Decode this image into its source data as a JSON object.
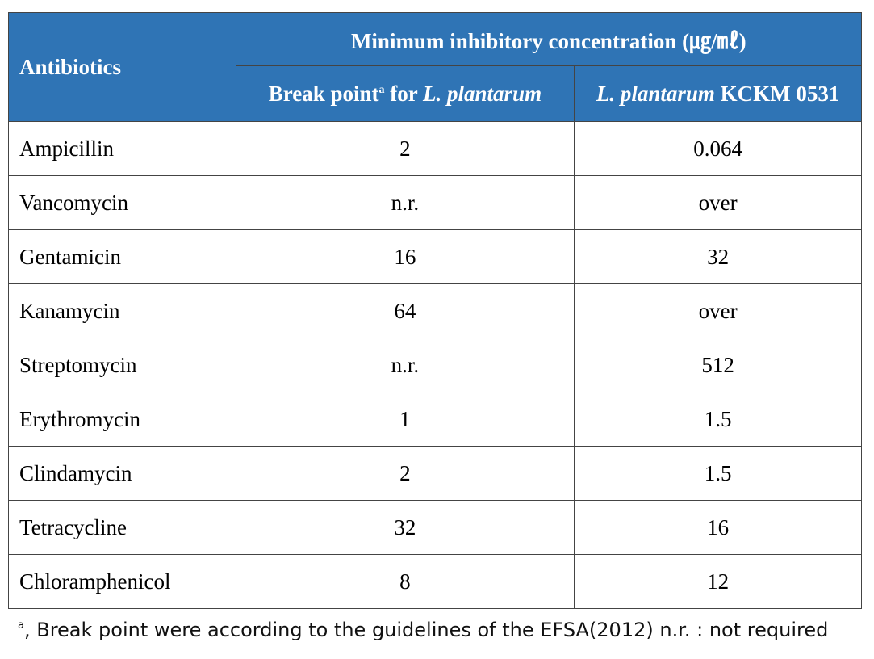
{
  "header": {
    "antibiotics": "Antibiotics",
    "mic": "Minimum inhibitory concentration (㎍/㎖)",
    "col1": {
      "text": "Break point",
      "sup": "a",
      "mid": " for ",
      "italic": "L. plantarum"
    },
    "col2": {
      "italic": "L. plantarum",
      "rest": " KCKM 0531"
    }
  },
  "table": {
    "rows": [
      [
        "Ampicillin",
        "2",
        "0.064"
      ],
      [
        "Vancomycin",
        "n.r.",
        "over"
      ],
      [
        "Gentamicin",
        "16",
        "32"
      ],
      [
        "Kanamycin",
        "64",
        "over"
      ],
      [
        "Streptomycin",
        "n.r.",
        "512"
      ],
      [
        "Erythromycin",
        "1",
        "1.5"
      ],
      [
        "Clindamycin",
        "2",
        "1.5"
      ],
      [
        "Tetracycline",
        "32",
        "16"
      ],
      [
        "Chloramphenicol",
        "8",
        "12"
      ]
    ]
  },
  "footnote": {
    "sup": "a",
    "text": ", Break point were according to the guidelines of the EFSA(2012) n.r. : not required"
  }
}
